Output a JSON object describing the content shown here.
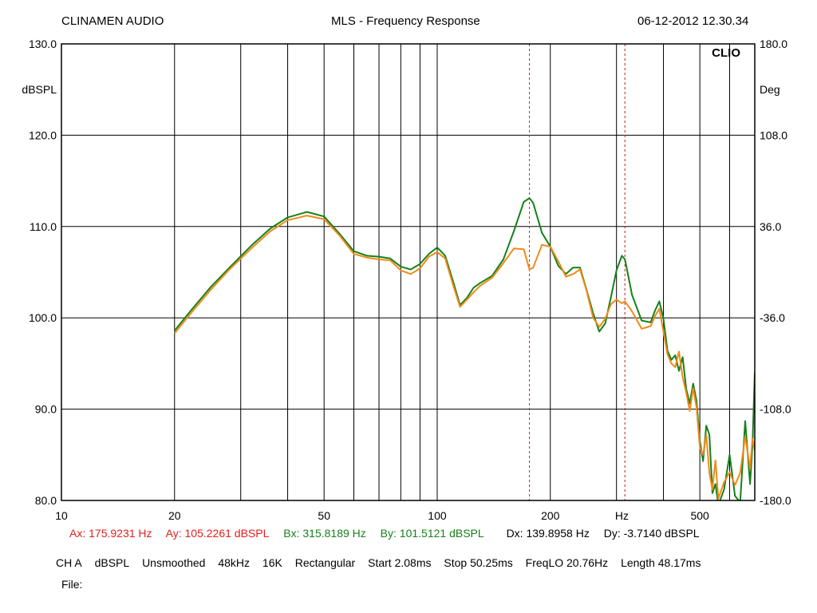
{
  "header": {
    "brand": "CLINAMEN AUDIO",
    "title": "MLS - Frequency Response",
    "datetime": "06-12-2012 12.30.34",
    "logo": "CLIO"
  },
  "colors": {
    "trace_a": "#17801a",
    "trace_b": "#f08a18",
    "cursor_a": "#e0201c",
    "cursor_b": "#b8201c",
    "text_green": "#17801a",
    "text_red": "#e0201c"
  },
  "cursors": {
    "ax": "Ax: 175.9231 Hz",
    "ay": "Ay: 105.2261 dBSPL",
    "bx": "Bx: 315.8189 Hz",
    "by": "By: 101.5121 dBSPL",
    "dx": "Dx: 139.8958 Hz",
    "dy": "Dy: -3.7140 dBSPL"
  },
  "settings": {
    "channel": "CH A",
    "unit": "dBSPL",
    "smoothing": "Unsmoothed",
    "rate": "48kHz",
    "size": "16K",
    "window": "Rectangular",
    "start": "Start 2.08ms",
    "stop": "Stop 50.25ms",
    "freqlo": "FreqLO 20.76Hz",
    "length": "Length 48.17ms"
  },
  "file_label": "File:",
  "chart_data": {
    "type": "line",
    "title": "MLS - Frequency Response",
    "xlabel": "Hz",
    "ylabel": "dBSPL",
    "y2label": "Deg",
    "xscale": "log",
    "xlim": [
      10,
      700
    ],
    "ylim": [
      80,
      130
    ],
    "y2lim": [
      -180,
      180
    ],
    "grid": true,
    "xticks": [
      10,
      20,
      50,
      100,
      200,
      500
    ],
    "xtick_labels": [
      "10",
      "20",
      "50",
      "100",
      "200",
      "500"
    ],
    "yticks": [
      80,
      90,
      100,
      110,
      120,
      130
    ],
    "ytick_labels": [
      "80.0",
      "90.0",
      "100.0",
      "110.0",
      "120.0",
      "130.0"
    ],
    "y2tick_labels": [
      "-180.0",
      "-108.0",
      "-36.0",
      "36.0",
      "108.0",
      "180.0"
    ],
    "cursors": [
      175.9231,
      315.8189
    ],
    "series": [
      {
        "x": [
          20,
          22,
          25,
          28,
          32,
          36,
          40,
          45,
          50,
          55,
          60,
          65,
          70,
          75,
          80,
          85,
          90,
          95,
          100,
          105,
          110,
          115,
          120,
          125,
          130,
          140,
          150,
          160,
          170,
          176,
          180,
          190,
          200,
          210,
          220,
          230,
          240,
          250,
          260,
          270,
          280,
          290,
          300,
          310,
          316,
          330,
          350,
          370,
          380,
          390,
          400,
          410,
          420,
          430,
          440,
          450,
          460,
          470,
          480,
          490,
          500,
          510,
          520,
          530,
          540,
          550,
          560,
          580,
          600,
          620,
          640,
          660,
          680,
          690,
          700
        ],
        "values": [
          98.6,
          100.7,
          103.4,
          105.5,
          107.9,
          109.8,
          111.0,
          111.6,
          111.1,
          109.2,
          107.3,
          106.8,
          106.7,
          106.5,
          105.6,
          105.3,
          105.9,
          107.0,
          107.7,
          106.8,
          104.1,
          101.4,
          102.2,
          103.3,
          103.8,
          104.6,
          106.4,
          109.5,
          112.7,
          113.1,
          112.6,
          109.3,
          107.8,
          105.7,
          104.8,
          105.5,
          105.5,
          103.0,
          100.5,
          98.5,
          99.4,
          102.3,
          105.2,
          106.8,
          106.4,
          102.5,
          99.7,
          99.5,
          100.8,
          101.8,
          99.9,
          96.4,
          95.4,
          95.9,
          94.2,
          95.7,
          92.2,
          90.6,
          92.8,
          90.9,
          86.5,
          84.3,
          88.2,
          87.2,
          80.8,
          81.8,
          79.5,
          81.2,
          85.0,
          80.5,
          79.8,
          88.7,
          81.8,
          86.0,
          94.0
        ]
      },
      {
        "x": [
          20,
          22,
          25,
          28,
          32,
          36,
          40,
          45,
          50,
          55,
          60,
          65,
          70,
          75,
          80,
          85,
          90,
          95,
          100,
          105,
          110,
          115,
          120,
          125,
          130,
          140,
          150,
          160,
          170,
          176,
          180,
          190,
          200,
          210,
          220,
          230,
          240,
          250,
          260,
          270,
          280,
          290,
          300,
          310,
          316,
          330,
          350,
          370,
          380,
          390,
          400,
          410,
          420,
          430,
          440,
          450,
          460,
          470,
          480,
          490,
          500,
          510,
          520,
          530,
          540,
          550,
          560,
          580,
          600,
          620,
          640,
          660,
          680,
          690,
          700
        ],
        "values": [
          98.3,
          100.4,
          103.1,
          105.3,
          107.6,
          109.5,
          110.7,
          111.2,
          110.8,
          109.0,
          107.0,
          106.6,
          106.4,
          106.3,
          105.2,
          104.8,
          105.4,
          106.7,
          107.2,
          106.5,
          103.7,
          101.2,
          102.0,
          102.8,
          103.5,
          104.4,
          106.0,
          107.6,
          107.5,
          105.3,
          105.5,
          108.0,
          107.8,
          106.2,
          104.5,
          104.8,
          105.3,
          102.9,
          100.0,
          99.0,
          99.9,
          101.5,
          102.0,
          101.6,
          101.8,
          100.7,
          98.8,
          99.1,
          100.2,
          101.0,
          98.5,
          96.0,
          95.0,
          94.6,
          96.3,
          93.5,
          91.8,
          89.8,
          92.3,
          90.2,
          85.8,
          85.0,
          87.2,
          83.0,
          81.2,
          84.4,
          80.2,
          82.0,
          83.1,
          81.7,
          83.0,
          87.0,
          83.5,
          86.8,
          85.5
        ]
      }
    ]
  }
}
